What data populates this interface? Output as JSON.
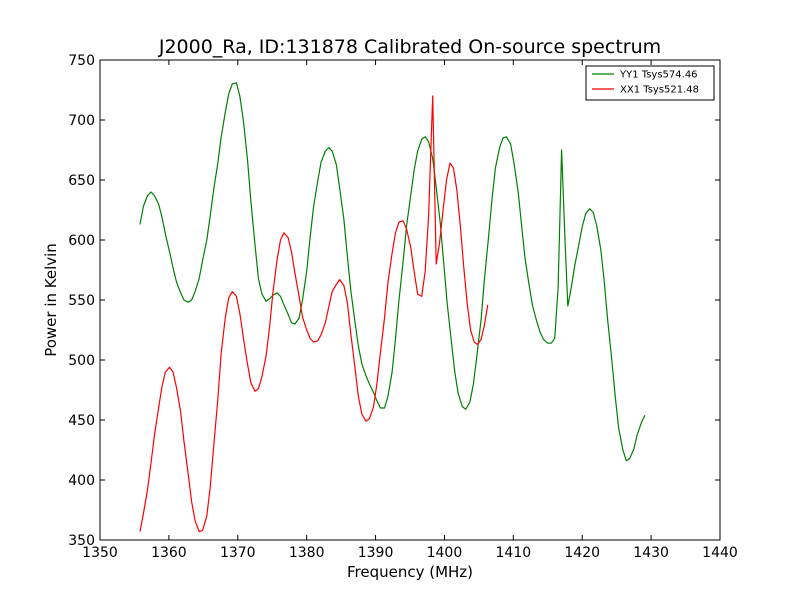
{
  "chart_data": {
    "type": "line",
    "title": "J2000_Ra, ID:131878 Calibrated On-source spectrum",
    "xlabel": "Frequency (MHz)",
    "ylabel": "Power in Kelvin",
    "xlim": [
      1350,
      1440
    ],
    "ylim": [
      350,
      750
    ],
    "x_ticks": [
      1350,
      1360,
      1370,
      1380,
      1390,
      1400,
      1410,
      1420,
      1430,
      1440
    ],
    "y_ticks": [
      350,
      400,
      450,
      500,
      550,
      600,
      650,
      700,
      750
    ],
    "grid": false,
    "legend_position": "top-right",
    "series": [
      {
        "name": "YY1 Tsys574.46",
        "color": "#008000",
        "points": [
          [
            1355.8,
            613
          ],
          [
            1356.3,
            628
          ],
          [
            1356.9,
            637
          ],
          [
            1357.4,
            640
          ],
          [
            1357.9,
            637
          ],
          [
            1358.5,
            630
          ],
          [
            1359.0,
            619
          ],
          [
            1359.5,
            605
          ],
          [
            1360.1,
            590
          ],
          [
            1360.6,
            577
          ],
          [
            1361.1,
            565
          ],
          [
            1361.7,
            556
          ],
          [
            1362.2,
            550
          ],
          [
            1362.8,
            548
          ],
          [
            1363.3,
            550
          ],
          [
            1363.8,
            557
          ],
          [
            1364.4,
            568
          ],
          [
            1364.9,
            583
          ],
          [
            1365.5,
            600
          ],
          [
            1366.0,
            620
          ],
          [
            1366.5,
            642
          ],
          [
            1367.1,
            664
          ],
          [
            1367.6,
            686
          ],
          [
            1368.2,
            707
          ],
          [
            1368.7,
            722
          ],
          [
            1369.2,
            730
          ],
          [
            1369.8,
            731
          ],
          [
            1370.3,
            720
          ],
          [
            1370.8,
            700
          ],
          [
            1371.4,
            668
          ],
          [
            1371.9,
            632
          ],
          [
            1372.5,
            596
          ],
          [
            1373.0,
            568
          ],
          [
            1373.5,
            555
          ],
          [
            1374.1,
            549
          ],
          [
            1374.6,
            551
          ],
          [
            1375.1,
            554
          ],
          [
            1375.7,
            556
          ],
          [
            1376.2,
            553
          ],
          [
            1376.7,
            546
          ],
          [
            1377.3,
            538
          ],
          [
            1377.8,
            531
          ],
          [
            1378.3,
            530
          ],
          [
            1378.9,
            535
          ],
          [
            1379.4,
            550
          ],
          [
            1380.0,
            574
          ],
          [
            1380.5,
            602
          ],
          [
            1381.0,
            628
          ],
          [
            1381.6,
            649
          ],
          [
            1382.1,
            665
          ],
          [
            1382.7,
            674
          ],
          [
            1383.2,
            677
          ],
          [
            1383.7,
            674
          ],
          [
            1384.3,
            663
          ],
          [
            1384.8,
            643
          ],
          [
            1385.4,
            617
          ],
          [
            1385.9,
            587
          ],
          [
            1386.4,
            558
          ],
          [
            1387.0,
            532
          ],
          [
            1387.5,
            512
          ],
          [
            1388.0,
            497
          ],
          [
            1388.6,
            487
          ],
          [
            1389.1,
            480
          ],
          [
            1389.7,
            473
          ],
          [
            1390.2,
            466
          ],
          [
            1390.7,
            460
          ],
          [
            1391.3,
            460
          ],
          [
            1391.8,
            470
          ],
          [
            1392.4,
            490
          ],
          [
            1392.9,
            518
          ],
          [
            1393.4,
            550
          ],
          [
            1394.0,
            582
          ],
          [
            1394.5,
            612
          ],
          [
            1395.1,
            637
          ],
          [
            1395.6,
            658
          ],
          [
            1396.1,
            674
          ],
          [
            1396.7,
            684
          ],
          [
            1397.2,
            686
          ],
          [
            1397.7,
            682
          ],
          [
            1398.3,
            668
          ],
          [
            1398.8,
            644
          ],
          [
            1399.4,
            614
          ],
          [
            1399.9,
            580
          ],
          [
            1400.4,
            547
          ],
          [
            1401.0,
            516
          ],
          [
            1401.5,
            490
          ],
          [
            1402.0,
            472
          ],
          [
            1402.6,
            461
          ],
          [
            1403.1,
            459
          ],
          [
            1403.7,
            465
          ],
          [
            1404.2,
            480
          ],
          [
            1404.7,
            503
          ],
          [
            1405.3,
            533
          ],
          [
            1405.8,
            567
          ],
          [
            1406.4,
            602
          ],
          [
            1406.9,
            634
          ],
          [
            1407.4,
            660
          ],
          [
            1408.0,
            677
          ],
          [
            1408.5,
            685
          ],
          [
            1409.0,
            686
          ],
          [
            1409.6,
            680
          ],
          [
            1410.1,
            664
          ],
          [
            1410.7,
            640
          ],
          [
            1411.2,
            612
          ],
          [
            1411.7,
            585
          ],
          [
            1412.3,
            562
          ],
          [
            1412.8,
            545
          ],
          [
            1413.4,
            532
          ],
          [
            1413.9,
            523
          ],
          [
            1414.4,
            517
          ],
          [
            1415.0,
            514
          ],
          [
            1415.5,
            514
          ],
          [
            1416.0,
            518
          ],
          [
            1416.5,
            560
          ],
          [
            1417.0,
            675
          ],
          [
            1417.5,
            600
          ],
          [
            1417.9,
            545
          ],
          [
            1418.4,
            560
          ],
          [
            1418.9,
            578
          ],
          [
            1419.5,
            596
          ],
          [
            1420.0,
            611
          ],
          [
            1420.5,
            622
          ],
          [
            1421.1,
            626
          ],
          [
            1421.6,
            623
          ],
          [
            1422.1,
            612
          ],
          [
            1422.7,
            592
          ],
          [
            1423.2,
            565
          ],
          [
            1423.7,
            533
          ],
          [
            1424.3,
            500
          ],
          [
            1424.8,
            469
          ],
          [
            1425.3,
            443
          ],
          [
            1425.9,
            425
          ],
          [
            1426.4,
            416
          ],
          [
            1426.9,
            418
          ],
          [
            1427.5,
            426
          ],
          [
            1428.0,
            438
          ],
          [
            1428.6,
            448
          ],
          [
            1429.1,
            454
          ]
        ]
      },
      {
        "name": "XX1 Tsys521.48",
        "color": "#ff0000",
        "points": [
          [
            1355.8,
            357
          ],
          [
            1356.3,
            372
          ],
          [
            1356.9,
            392
          ],
          [
            1357.4,
            414
          ],
          [
            1357.9,
            437
          ],
          [
            1358.5,
            460
          ],
          [
            1359.0,
            478
          ],
          [
            1359.5,
            490
          ],
          [
            1360.1,
            494
          ],
          [
            1360.6,
            490
          ],
          [
            1361.1,
            477
          ],
          [
            1361.7,
            457
          ],
          [
            1362.2,
            432
          ],
          [
            1362.8,
            405
          ],
          [
            1363.3,
            382
          ],
          [
            1363.8,
            366
          ],
          [
            1364.4,
            357
          ],
          [
            1364.9,
            358
          ],
          [
            1365.5,
            370
          ],
          [
            1366.0,
            394
          ],
          [
            1366.5,
            428
          ],
          [
            1367.1,
            467
          ],
          [
            1367.6,
            506
          ],
          [
            1368.2,
            536
          ],
          [
            1368.7,
            552
          ],
          [
            1369.2,
            557
          ],
          [
            1369.8,
            553
          ],
          [
            1370.3,
            539
          ],
          [
            1370.8,
            519
          ],
          [
            1371.4,
            497
          ],
          [
            1371.9,
            481
          ],
          [
            1372.5,
            474
          ],
          [
            1373.0,
            476
          ],
          [
            1373.5,
            486
          ],
          [
            1374.1,
            503
          ],
          [
            1374.6,
            527
          ],
          [
            1375.1,
            556
          ],
          [
            1375.7,
            583
          ],
          [
            1376.2,
            600
          ],
          [
            1376.7,
            606
          ],
          [
            1377.3,
            602
          ],
          [
            1377.8,
            590
          ],
          [
            1378.3,
            572
          ],
          [
            1378.9,
            553
          ],
          [
            1379.4,
            536
          ],
          [
            1380.0,
            525
          ],
          [
            1380.5,
            518
          ],
          [
            1381.0,
            515
          ],
          [
            1381.6,
            516
          ],
          [
            1382.1,
            521
          ],
          [
            1382.7,
            531
          ],
          [
            1383.2,
            544
          ],
          [
            1383.7,
            557
          ],
          [
            1384.3,
            563
          ],
          [
            1384.8,
            567
          ],
          [
            1385.4,
            562
          ],
          [
            1385.9,
            548
          ],
          [
            1386.4,
            522
          ],
          [
            1387.0,
            494
          ],
          [
            1387.5,
            470
          ],
          [
            1388.0,
            455
          ],
          [
            1388.6,
            449
          ],
          [
            1389.1,
            451
          ],
          [
            1389.7,
            461
          ],
          [
            1390.2,
            480
          ],
          [
            1390.7,
            506
          ],
          [
            1391.3,
            535
          ],
          [
            1391.8,
            565
          ],
          [
            1392.4,
            589
          ],
          [
            1392.9,
            606
          ],
          [
            1393.4,
            615
          ],
          [
            1394.0,
            616
          ],
          [
            1394.5,
            609
          ],
          [
            1395.1,
            594
          ],
          [
            1395.6,
            574
          ],
          [
            1396.1,
            555
          ],
          [
            1396.7,
            553
          ],
          [
            1397.2,
            574
          ],
          [
            1397.7,
            620
          ],
          [
            1398.3,
            720
          ],
          [
            1398.8,
            580
          ],
          [
            1399.3,
            598
          ],
          [
            1399.8,
            625
          ],
          [
            1400.3,
            650
          ],
          [
            1400.8,
            664
          ],
          [
            1401.3,
            660
          ],
          [
            1401.8,
            642
          ],
          [
            1402.3,
            612
          ],
          [
            1402.8,
            578
          ],
          [
            1403.3,
            547
          ],
          [
            1403.8,
            525
          ],
          [
            1404.3,
            515
          ],
          [
            1404.8,
            513
          ],
          [
            1405.3,
            517
          ],
          [
            1405.8,
            529
          ],
          [
            1406.3,
            546
          ]
        ]
      }
    ]
  }
}
